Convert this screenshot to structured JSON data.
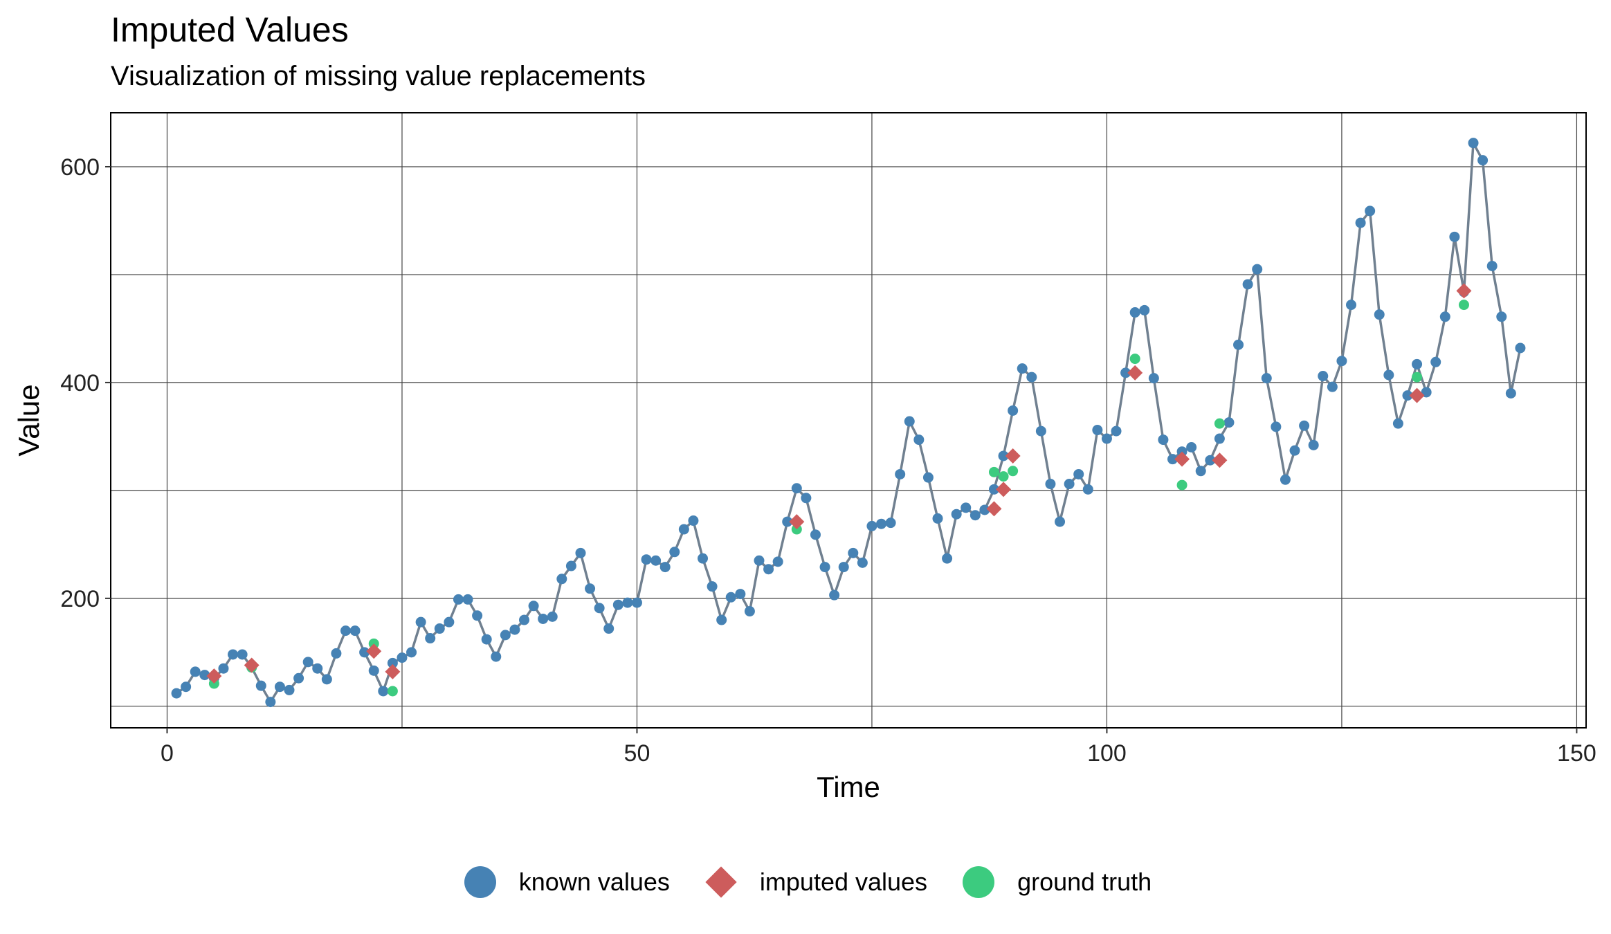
{
  "chart_data": {
    "type": "line",
    "title": "Imputed Values",
    "subtitle": "Visualization of missing value replacements",
    "xlabel": "Time",
    "ylabel": "Value",
    "xlim": [
      -6,
      151
    ],
    "ylim": [
      80,
      650
    ],
    "xticks": [
      0,
      50,
      100,
      150
    ],
    "yticks": [
      200,
      400,
      600
    ],
    "grid": true,
    "legend_position": "bottom",
    "colors": {
      "known": "#4682B4",
      "line": "#708090",
      "imputed": "#CD5C5C",
      "ground_truth": "#3CCB7F"
    },
    "legend": [
      {
        "label": "known values",
        "shape": "circle",
        "color": "#4682B4"
      },
      {
        "label": "imputed values",
        "shape": "diamond",
        "color": "#CD5C5C"
      },
      {
        "label": "ground truth",
        "shape": "circle",
        "color": "#3CCB7F"
      }
    ],
    "series": [
      {
        "name": "known values",
        "x": [
          1,
          2,
          3,
          4,
          5,
          6,
          7,
          8,
          9,
          10,
          11,
          12,
          13,
          14,
          15,
          16,
          17,
          18,
          19,
          20,
          21,
          22,
          23,
          24,
          25,
          26,
          27,
          28,
          29,
          30,
          31,
          32,
          33,
          34,
          35,
          36,
          37,
          38,
          39,
          40,
          41,
          42,
          43,
          44,
          45,
          46,
          47,
          48,
          49,
          50,
          51,
          52,
          53,
          54,
          55,
          56,
          57,
          58,
          59,
          60,
          61,
          62,
          63,
          64,
          65,
          66,
          67,
          68,
          69,
          70,
          71,
          72,
          73,
          74,
          75,
          76,
          77,
          78,
          79,
          80,
          81,
          82,
          83,
          84,
          85,
          86,
          87,
          88,
          89,
          90,
          91,
          92,
          93,
          94,
          95,
          96,
          97,
          98,
          99,
          100,
          101,
          102,
          103,
          104,
          105,
          106,
          107,
          108,
          109,
          110,
          111,
          112,
          113,
          114,
          115,
          116,
          117,
          118,
          119,
          120,
          121,
          122,
          123,
          124,
          125,
          126,
          127,
          128,
          129,
          130,
          131,
          132,
          133,
          134,
          135,
          136,
          137,
          138,
          139,
          140,
          141,
          142,
          143,
          144
        ],
        "y": [
          112,
          118,
          132,
          129,
          126,
          135,
          148,
          148,
          136,
          119,
          104,
          118,
          115,
          126,
          141,
          135,
          125,
          149,
          170,
          170,
          150,
          133,
          114,
          140,
          145,
          150,
          178,
          163,
          172,
          178,
          199,
          199,
          184,
          162,
          146,
          166,
          171,
          180,
          193,
          181,
          183,
          218,
          230,
          242,
          209,
          191,
          172,
          194,
          196,
          196,
          236,
          235,
          229,
          243,
          264,
          272,
          237,
          211,
          180,
          201,
          204,
          188,
          235,
          227,
          234,
          271,
          302,
          293,
          259,
          229,
          203,
          229,
          242,
          233,
          267,
          269,
          270,
          315,
          364,
          347,
          312,
          274,
          237,
          278,
          284,
          277,
          282,
          301,
          332,
          374,
          413,
          405,
          355,
          306,
          271,
          306,
          315,
          301,
          356,
          348,
          355,
          409,
          465,
          467,
          404,
          347,
          329,
          336,
          340,
          318,
          328,
          348,
          363,
          435,
          491,
          505,
          404,
          359,
          310,
          337,
          360,
          342,
          406,
          396,
          420,
          472,
          548,
          559,
          463,
          407,
          362,
          388,
          417,
          391,
          419,
          461,
          535,
          484,
          622,
          606,
          508,
          461,
          390,
          432
        ]
      },
      {
        "name": "imputed values",
        "x": [
          5,
          9,
          22,
          24,
          67,
          88,
          89,
          90,
          103,
          108,
          112,
          133,
          138
        ],
        "y": [
          128,
          138,
          151,
          132,
          271,
          283,
          301,
          332,
          409,
          329,
          328,
          388,
          485
        ]
      },
      {
        "name": "ground truth",
        "x": [
          5,
          9,
          22,
          24,
          67,
          88,
          89,
          90,
          103,
          108,
          112,
          133,
          138
        ],
        "y": [
          121,
          136,
          158,
          114,
          264,
          317,
          313,
          318,
          422,
          305,
          362,
          405,
          472
        ]
      }
    ]
  }
}
